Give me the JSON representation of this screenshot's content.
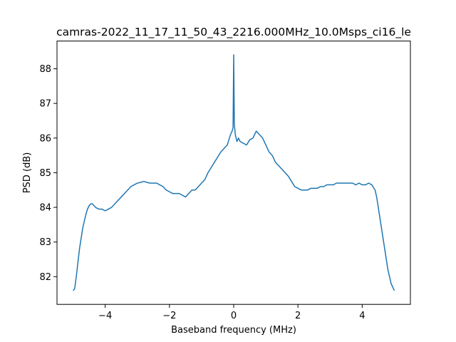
{
  "chart_data": {
    "type": "line",
    "title": "camras-2022_11_17_11_50_43_2216.000MHz_10.0Msps_ci16_le",
    "xlabel": "Baseband frequency (MHz)",
    "ylabel": "PSD (dB)",
    "xlim": [
      -5.5,
      5.5
    ],
    "ylim": [
      81.2,
      88.8
    ],
    "xticks": [
      -4,
      -2,
      0,
      2,
      4
    ],
    "xtick_labels": [
      "−4",
      "−2",
      "0",
      "2",
      "4"
    ],
    "yticks": [
      82,
      83,
      84,
      85,
      86,
      87,
      88
    ],
    "ytick_labels": [
      "82",
      "83",
      "84",
      "85",
      "86",
      "87",
      "88"
    ],
    "grid": false,
    "legend": "none",
    "series": [
      {
        "color": "#1f77b4",
        "x": [
          -5.0,
          -4.95,
          -4.9,
          -4.85,
          -4.8,
          -4.75,
          -4.7,
          -4.65,
          -4.6,
          -4.55,
          -4.5,
          -4.45,
          -4.4,
          -4.3,
          -4.2,
          -4.1,
          -4.0,
          -3.9,
          -3.8,
          -3.7,
          -3.6,
          -3.5,
          -3.4,
          -3.3,
          -3.2,
          -3.1,
          -3.0,
          -2.9,
          -2.8,
          -2.7,
          -2.6,
          -2.5,
          -2.4,
          -2.3,
          -2.2,
          -2.1,
          -2.0,
          -1.9,
          -1.8,
          -1.7,
          -1.6,
          -1.5,
          -1.4,
          -1.3,
          -1.2,
          -1.1,
          -1.0,
          -0.9,
          -0.8,
          -0.7,
          -0.6,
          -0.5,
          -0.4,
          -0.3,
          -0.2,
          -0.15,
          -0.1,
          -0.05,
          -0.02,
          0.0,
          0.02,
          0.05,
          0.1,
          0.15,
          0.2,
          0.3,
          0.4,
          0.5,
          0.6,
          0.7,
          0.8,
          0.9,
          1.0,
          1.1,
          1.2,
          1.3,
          1.4,
          1.5,
          1.6,
          1.7,
          1.8,
          1.9,
          2.0,
          2.1,
          2.2,
          2.3,
          2.4,
          2.5,
          2.6,
          2.7,
          2.8,
          2.9,
          3.0,
          3.1,
          3.2,
          3.3,
          3.4,
          3.5,
          3.6,
          3.7,
          3.8,
          3.9,
          4.0,
          4.1,
          4.2,
          4.3,
          4.4,
          4.45,
          4.5,
          4.55,
          4.6,
          4.65,
          4.7,
          4.75,
          4.8,
          4.85,
          4.9,
          4.95,
          5.0
        ],
        "y": [
          81.6,
          81.65,
          82.0,
          82.4,
          82.8,
          83.1,
          83.4,
          83.6,
          83.8,
          83.95,
          84.05,
          84.1,
          84.1,
          84.0,
          83.95,
          83.95,
          83.9,
          83.95,
          84.0,
          84.1,
          84.2,
          84.3,
          84.4,
          84.5,
          84.6,
          84.65,
          84.7,
          84.72,
          84.75,
          84.72,
          84.7,
          84.7,
          84.7,
          84.65,
          84.6,
          84.5,
          84.45,
          84.4,
          84.4,
          84.4,
          84.35,
          84.3,
          84.4,
          84.5,
          84.5,
          84.6,
          84.7,
          84.8,
          85.0,
          85.15,
          85.3,
          85.45,
          85.6,
          85.7,
          85.8,
          85.95,
          86.1,
          86.2,
          86.3,
          88.4,
          86.4,
          86.1,
          85.9,
          86.0,
          85.9,
          85.85,
          85.8,
          85.95,
          86.0,
          86.2,
          86.1,
          86.0,
          85.8,
          85.6,
          85.5,
          85.3,
          85.2,
          85.1,
          85.0,
          84.9,
          84.75,
          84.6,
          84.55,
          84.5,
          84.5,
          84.5,
          84.55,
          84.55,
          84.55,
          84.6,
          84.6,
          84.65,
          84.65,
          84.65,
          84.7,
          84.7,
          84.7,
          84.7,
          84.7,
          84.7,
          84.65,
          84.7,
          84.65,
          84.65,
          84.7,
          84.65,
          84.5,
          84.3,
          84.0,
          83.7,
          83.4,
          83.1,
          82.8,
          82.5,
          82.2,
          82.0,
          81.8,
          81.7,
          81.6
        ]
      }
    ]
  }
}
